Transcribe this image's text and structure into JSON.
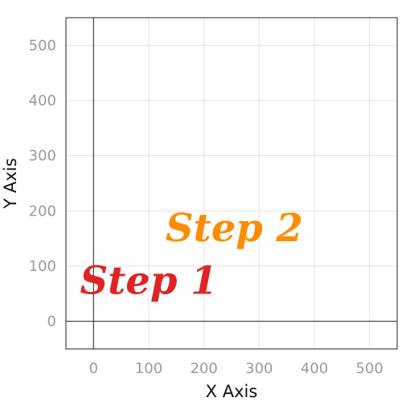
{
  "chart_data": {
    "type": "scatter",
    "title": "",
    "xlabel": "X Axis",
    "ylabel": "Y Axis",
    "xlim": [
      -50,
      550
    ],
    "ylim": [
      -50,
      550
    ],
    "xticks": [
      0,
      100,
      200,
      300,
      400,
      500
    ],
    "yticks": [
      0,
      100,
      200,
      300,
      400,
      500
    ],
    "grid": true,
    "legend": "none",
    "annotations": [
      {
        "text": "Step 1",
        "x": 100,
        "y": 50,
        "color": "#e02424"
      },
      {
        "text": "Step 2",
        "x": 255,
        "y": 145,
        "color": "#ff8c00"
      }
    ]
  }
}
